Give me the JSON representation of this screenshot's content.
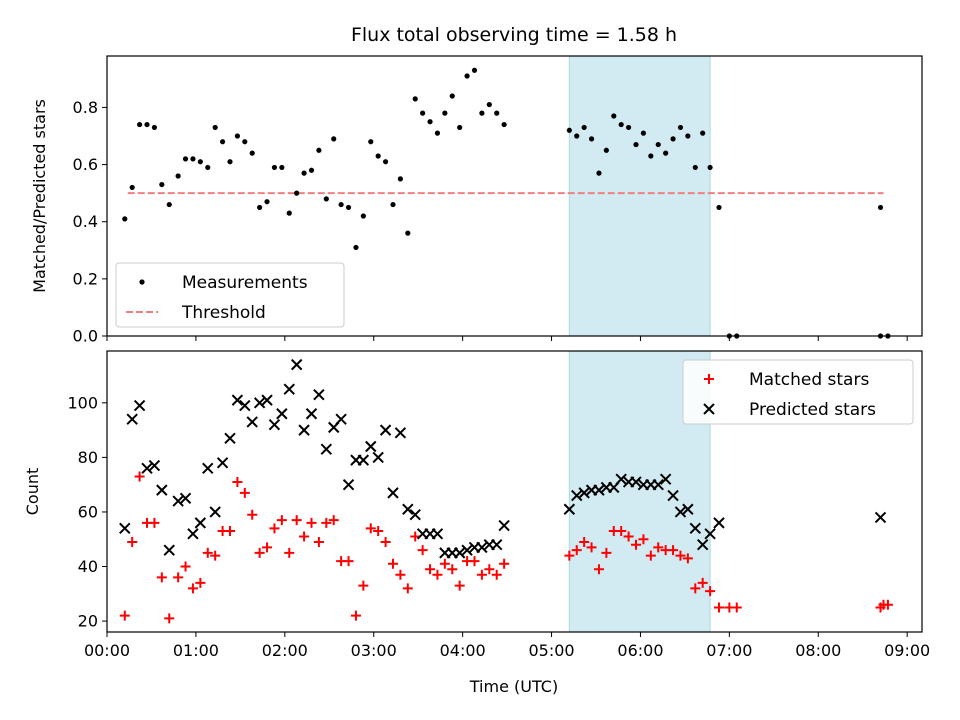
{
  "figure": {
    "title": "Flux total observing time = 1.58 h",
    "xlabel": "Time (UTC)"
  },
  "colors": {
    "span": "#add8e6",
    "measurement": "#000000",
    "threshold": "#f08080",
    "matched": "#ff0000",
    "predicted": "#000000"
  },
  "chart_data": [
    {
      "type": "scatter",
      "panel": "top",
      "ylabel": "Matched/Predicted stars",
      "xlim": [
        "00:00",
        "09:10"
      ],
      "ylim": [
        0,
        0.98
      ],
      "xticks": [
        "00:00",
        "01:00",
        "02:00",
        "03:00",
        "04:00",
        "05:00",
        "06:00",
        "07:00",
        "08:00",
        "09:00"
      ],
      "yticks": [
        0.0,
        0.2,
        0.4,
        0.6,
        0.8
      ],
      "highlight_span": [
        "05:12",
        "06:47"
      ],
      "legend": {
        "placement": "lower-left",
        "entries": [
          "Measurements",
          "Threshold"
        ]
      },
      "threshold": {
        "name": "Threshold",
        "value": 0.5,
        "x_range": [
          "00:14",
          "08:44"
        ],
        "style": "dashed"
      },
      "series": [
        {
          "name": "Measurements",
          "marker": "dot",
          "points": [
            [
              "00:12",
              0.41
            ],
            [
              "00:17",
              0.52
            ],
            [
              "00:22",
              0.74
            ],
            [
              "00:27",
              0.74
            ],
            [
              "00:32",
              0.73
            ],
            [
              "00:37",
              0.53
            ],
            [
              "00:42",
              0.46
            ],
            [
              "00:48",
              0.56
            ],
            [
              "00:53",
              0.62
            ],
            [
              "00:58",
              0.62
            ],
            [
              "01:03",
              0.61
            ],
            [
              "01:08",
              0.59
            ],
            [
              "01:13",
              0.73
            ],
            [
              "01:18",
              0.68
            ],
            [
              "01:23",
              0.61
            ],
            [
              "01:28",
              0.7
            ],
            [
              "01:33",
              0.68
            ],
            [
              "01:38",
              0.64
            ],
            [
              "01:43",
              0.45
            ],
            [
              "01:48",
              0.47
            ],
            [
              "01:53",
              0.59
            ],
            [
              "01:58",
              0.59
            ],
            [
              "02:03",
              0.43
            ],
            [
              "02:08",
              0.5
            ],
            [
              "02:13",
              0.57
            ],
            [
              "02:18",
              0.58
            ],
            [
              "02:23",
              0.65
            ],
            [
              "02:28",
              0.48
            ],
            [
              "02:33",
              0.69
            ],
            [
              "02:38",
              0.46
            ],
            [
              "02:43",
              0.45
            ],
            [
              "02:48",
              0.31
            ],
            [
              "02:53",
              0.42
            ],
            [
              "02:58",
              0.68
            ],
            [
              "03:03",
              0.63
            ],
            [
              "03:08",
              0.61
            ],
            [
              "03:13",
              0.46
            ],
            [
              "03:18",
              0.55
            ],
            [
              "03:23",
              0.36
            ],
            [
              "03:28",
              0.83
            ],
            [
              "03:33",
              0.78
            ],
            [
              "03:38",
              0.75
            ],
            [
              "03:43",
              0.71
            ],
            [
              "03:48",
              0.78
            ],
            [
              "03:53",
              0.84
            ],
            [
              "03:58",
              0.73
            ],
            [
              "04:03",
              0.91
            ],
            [
              "04:08",
              0.93
            ],
            [
              "04:13",
              0.78
            ],
            [
              "04:18",
              0.81
            ],
            [
              "04:23",
              0.78
            ],
            [
              "04:28",
              0.74
            ],
            [
              "05:12",
              0.72
            ],
            [
              "05:17",
              0.7
            ],
            [
              "05:22",
              0.73
            ],
            [
              "05:27",
              0.69
            ],
            [
              "05:32",
              0.57
            ],
            [
              "05:37",
              0.65
            ],
            [
              "05:42",
              0.77
            ],
            [
              "05:47",
              0.74
            ],
            [
              "05:52",
              0.73
            ],
            [
              "05:57",
              0.67
            ],
            [
              "06:02",
              0.71
            ],
            [
              "06:07",
              0.63
            ],
            [
              "06:12",
              0.67
            ],
            [
              "06:17",
              0.64
            ],
            [
              "06:22",
              0.69
            ],
            [
              "06:27",
              0.73
            ],
            [
              "06:32",
              0.7
            ],
            [
              "06:37",
              0.59
            ],
            [
              "06:42",
              0.71
            ],
            [
              "06:47",
              0.59
            ],
            [
              "06:53",
              0.45
            ],
            [
              "07:00",
              0.0
            ],
            [
              "07:05",
              0.0
            ],
            [
              "08:42",
              0.45
            ],
            [
              "08:42",
              0.0
            ],
            [
              "08:47",
              0.0
            ]
          ]
        }
      ]
    },
    {
      "type": "scatter",
      "panel": "bottom",
      "ylabel": "Count",
      "xlim": [
        "00:00",
        "09:10"
      ],
      "ylim": [
        16,
        119
      ],
      "xticks": [
        "00:00",
        "01:00",
        "02:00",
        "03:00",
        "04:00",
        "05:00",
        "06:00",
        "07:00",
        "08:00",
        "09:00"
      ],
      "yticks": [
        20,
        40,
        60,
        80,
        100
      ],
      "highlight_span": [
        "05:12",
        "06:47"
      ],
      "legend": {
        "placement": "upper-right",
        "entries": [
          "Matched stars",
          "Predicted stars"
        ]
      },
      "series": [
        {
          "name": "Matched stars",
          "marker": "plus",
          "points": [
            [
              "00:12",
              22
            ],
            [
              "00:17",
              49
            ],
            [
              "00:22",
              73
            ],
            [
              "00:27",
              56
            ],
            [
              "00:32",
              56
            ],
            [
              "00:37",
              36
            ],
            [
              "00:42",
              21
            ],
            [
              "00:48",
              36
            ],
            [
              "00:53",
              40
            ],
            [
              "00:58",
              32
            ],
            [
              "01:03",
              34
            ],
            [
              "01:08",
              45
            ],
            [
              "01:13",
              44
            ],
            [
              "01:18",
              53
            ],
            [
              "01:23",
              53
            ],
            [
              "01:28",
              71
            ],
            [
              "01:33",
              67
            ],
            [
              "01:38",
              59
            ],
            [
              "01:43",
              45
            ],
            [
              "01:48",
              47
            ],
            [
              "01:53",
              54
            ],
            [
              "01:58",
              57
            ],
            [
              "02:03",
              45
            ],
            [
              "02:08",
              57
            ],
            [
              "02:13",
              51
            ],
            [
              "02:18",
              56
            ],
            [
              "02:23",
              49
            ],
            [
              "02:28",
              56
            ],
            [
              "02:33",
              57
            ],
            [
              "02:38",
              42
            ],
            [
              "02:43",
              42
            ],
            [
              "02:48",
              22
            ],
            [
              "02:53",
              33
            ],
            [
              "02:58",
              54
            ],
            [
              "03:03",
              53
            ],
            [
              "03:08",
              49
            ],
            [
              "03:13",
              41
            ],
            [
              "03:18",
              37
            ],
            [
              "03:23",
              32
            ],
            [
              "03:28",
              51
            ],
            [
              "03:33",
              46
            ],
            [
              "03:38",
              39
            ],
            [
              "03:43",
              37
            ],
            [
              "03:48",
              41
            ],
            [
              "03:53",
              39
            ],
            [
              "03:58",
              33
            ],
            [
              "04:03",
              42
            ],
            [
              "04:08",
              42
            ],
            [
              "04:13",
              37
            ],
            [
              "04:18",
              39
            ],
            [
              "04:23",
              37
            ],
            [
              "04:28",
              41
            ],
            [
              "05:12",
              44
            ],
            [
              "05:17",
              46
            ],
            [
              "05:22",
              49
            ],
            [
              "05:27",
              47
            ],
            [
              "05:32",
              39
            ],
            [
              "05:37",
              45
            ],
            [
              "05:42",
              53
            ],
            [
              "05:47",
              53
            ],
            [
              "05:52",
              51
            ],
            [
              "05:57",
              48
            ],
            [
              "06:02",
              50
            ],
            [
              "06:07",
              44
            ],
            [
              "06:12",
              47
            ],
            [
              "06:17",
              46
            ],
            [
              "06:22",
              46
            ],
            [
              "06:27",
              44
            ],
            [
              "06:32",
              43
            ],
            [
              "06:37",
              32
            ],
            [
              "06:42",
              34
            ],
            [
              "06:47",
              31
            ],
            [
              "06:53",
              25
            ],
            [
              "07:00",
              25
            ],
            [
              "07:05",
              25
            ],
            [
              "08:42",
              25
            ],
            [
              "08:44",
              26
            ],
            [
              "08:47",
              26
            ]
          ]
        },
        {
          "name": "Predicted stars",
          "marker": "x",
          "points": [
            [
              "00:12",
              54
            ],
            [
              "00:17",
              94
            ],
            [
              "00:22",
              99
            ],
            [
              "00:27",
              76
            ],
            [
              "00:32",
              77
            ],
            [
              "00:37",
              68
            ],
            [
              "00:42",
              46
            ],
            [
              "00:48",
              64
            ],
            [
              "00:53",
              65
            ],
            [
              "00:58",
              52
            ],
            [
              "01:03",
              56
            ],
            [
              "01:08",
              76
            ],
            [
              "01:13",
              60
            ],
            [
              "01:18",
              78
            ],
            [
              "01:23",
              87
            ],
            [
              "01:28",
              101
            ],
            [
              "01:33",
              99
            ],
            [
              "01:38",
              93
            ],
            [
              "01:43",
              100
            ],
            [
              "01:48",
              101
            ],
            [
              "01:53",
              92
            ],
            [
              "01:58",
              96
            ],
            [
              "02:03",
              105
            ],
            [
              "02:08",
              114
            ],
            [
              "02:13",
              90
            ],
            [
              "02:18",
              96
            ],
            [
              "02:23",
              103
            ],
            [
              "02:28",
              83
            ],
            [
              "02:33",
              91
            ],
            [
              "02:38",
              94
            ],
            [
              "02:43",
              70
            ],
            [
              "02:48",
              79
            ],
            [
              "02:53",
              79
            ],
            [
              "02:58",
              84
            ],
            [
              "03:03",
              80
            ],
            [
              "03:08",
              90
            ],
            [
              "03:13",
              67
            ],
            [
              "03:18",
              89
            ],
            [
              "03:23",
              61
            ],
            [
              "03:28",
              59
            ],
            [
              "03:33",
              52
            ],
            [
              "03:38",
              52
            ],
            [
              "03:43",
              52
            ],
            [
              "03:48",
              45
            ],
            [
              "03:53",
              45
            ],
            [
              "03:58",
              45
            ],
            [
              "04:03",
              46
            ],
            [
              "04:08",
              47
            ],
            [
              "04:13",
              47
            ],
            [
              "04:18",
              48
            ],
            [
              "04:23",
              48
            ],
            [
              "04:28",
              55
            ],
            [
              "05:12",
              61
            ],
            [
              "05:17",
              66
            ],
            [
              "05:22",
              67
            ],
            [
              "05:27",
              68
            ],
            [
              "05:32",
              68
            ],
            [
              "05:37",
              69
            ],
            [
              "05:42",
              69
            ],
            [
              "05:47",
              72
            ],
            [
              "05:52",
              71
            ],
            [
              "05:57",
              71
            ],
            [
              "06:02",
              70
            ],
            [
              "06:07",
              70
            ],
            [
              "06:12",
              70
            ],
            [
              "06:17",
              72
            ],
            [
              "06:22",
              66
            ],
            [
              "06:27",
              60
            ],
            [
              "06:32",
              61
            ],
            [
              "06:37",
              54
            ],
            [
              "06:42",
              48
            ],
            [
              "06:47",
              52
            ],
            [
              "06:53",
              56
            ],
            [
              "08:42",
              58
            ]
          ]
        }
      ]
    }
  ]
}
